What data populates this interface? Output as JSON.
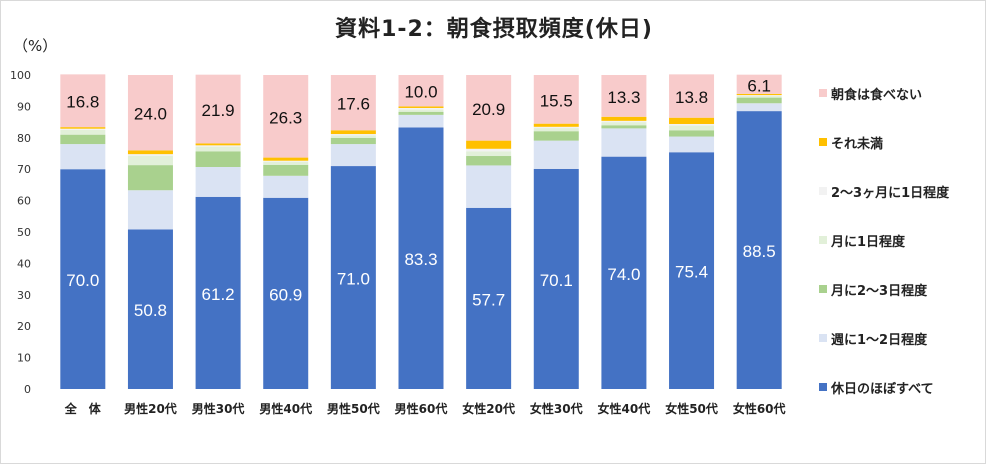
{
  "chart_data": {
    "type": "bar",
    "stacked": true,
    "title": "資料1-2：朝食摂取頻度(休日)",
    "unit_label": "（%）",
    "ylim": [
      0,
      100
    ],
    "yticks": [
      0,
      10,
      20,
      30,
      40,
      50,
      60,
      70,
      80,
      90,
      100
    ],
    "grid": false,
    "legend_position": "right",
    "categories": [
      "全　体",
      "男性20代",
      "男性30代",
      "男性40代",
      "男性50代",
      "男性60代",
      "女性20代",
      "女性30代",
      "女性40代",
      "女性50代",
      "女性60代"
    ],
    "series": [
      {
        "name": "休日のほぼすべて",
        "color": "#4472C4",
        "values": [
          70.0,
          50.8,
          61.2,
          60.9,
          71.0,
          83.3,
          57.7,
          70.1,
          74.0,
          75.4,
          88.5
        ],
        "labels": [
          "70.0",
          "50.8",
          "61.2",
          "60.9",
          "71.0",
          "83.3",
          "57.7",
          "70.1",
          "74.0",
          "75.4",
          "88.5"
        ]
      },
      {
        "name": "週に1～2日程度",
        "color": "#DAE3F3",
        "values": [
          8.0,
          12.5,
          9.5,
          7.0,
          7.0,
          4.0,
          13.5,
          9.0,
          9.0,
          5.0,
          2.5
        ]
      },
      {
        "name": "月に2～3日程度",
        "color": "#A9D18E",
        "values": [
          3.0,
          8.0,
          5.0,
          3.5,
          2.0,
          1.0,
          3.0,
          3.0,
          1.0,
          2.0,
          1.8
        ]
      },
      {
        "name": "月に1日程度",
        "color": "#E2F0D9",
        "values": [
          1.5,
          3.0,
          1.5,
          1.0,
          0.8,
          0.7,
          1.5,
          1.0,
          1.0,
          1.5,
          0.5
        ]
      },
      {
        "name": "2～3ヶ月に1日程度",
        "color": "#F2F2F2",
        "values": [
          0.4,
          0.5,
          0.4,
          0.3,
          0.4,
          0.5,
          0.8,
          0.4,
          0.4,
          0.5,
          0.3
        ]
      },
      {
        "name": "それ未満",
        "color": "#FFC000",
        "values": [
          0.5,
          1.2,
          0.6,
          1.0,
          1.2,
          0.5,
          2.6,
          1.0,
          1.3,
          2.0,
          0.4
        ]
      },
      {
        "name": "朝食は食べない",
        "color": "#F8CBCB",
        "values": [
          16.8,
          24.0,
          21.9,
          26.3,
          17.6,
          10.0,
          20.9,
          15.5,
          13.3,
          13.8,
          6.1
        ],
        "labels": [
          "16.8",
          "24.0",
          "21.9",
          "26.3",
          "17.6",
          "10.0",
          "20.9",
          "15.5",
          "13.3",
          "13.8",
          "6.1"
        ]
      }
    ]
  }
}
